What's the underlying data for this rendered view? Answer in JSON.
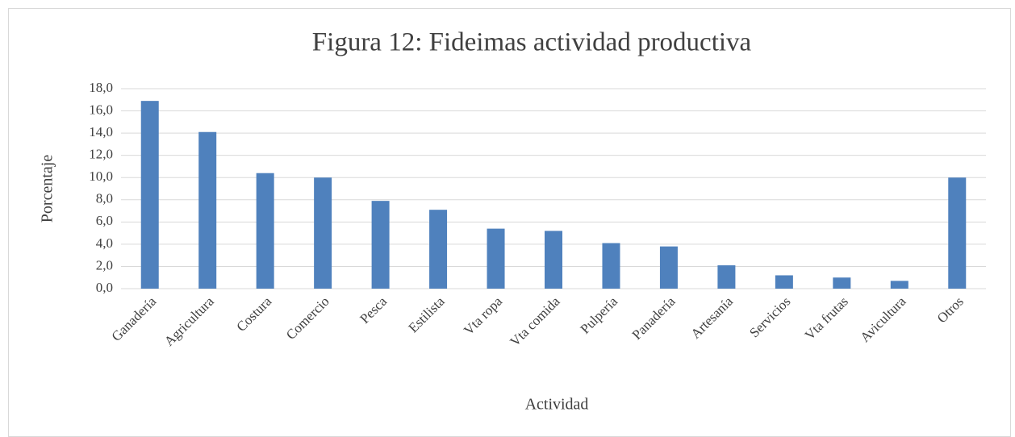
{
  "chart_data": {
    "type": "bar",
    "title": "Figura 12: Fideimas actividad productiva",
    "x_label": "Actividad",
    "y_label": "Porcentaje",
    "categories": [
      "Ganadería",
      "Agricultura",
      "Costura",
      "Comercio",
      "Pesca",
      "Estilista",
      "Vta ropa",
      "Vta comida",
      "Pulpería",
      "Panadería",
      "Artesanía",
      "Servicios",
      "Vta frutas",
      "Avicultura",
      "Otros"
    ],
    "values": [
      16.9,
      14.1,
      10.4,
      10.0,
      7.9,
      7.1,
      5.4,
      5.2,
      4.1,
      3.8,
      2.1,
      1.2,
      1.0,
      0.7,
      10.0
    ],
    "color": "#4f81bd",
    "ylim": [
      0,
      18
    ],
    "yticks": [
      {
        "value": 0,
        "label": "0,0"
      },
      {
        "value": 2,
        "label": "2,0"
      },
      {
        "value": 4,
        "label": "4,0"
      },
      {
        "value": 6,
        "label": "6,0"
      },
      {
        "value": 8,
        "label": "8,0"
      },
      {
        "value": 10,
        "label": "10,0"
      },
      {
        "value": 12,
        "label": "12,0"
      },
      {
        "value": 14,
        "label": "14,0"
      },
      {
        "value": 16,
        "label": "16,0"
      },
      {
        "value": 18,
        "label": "18,0"
      }
    ],
    "grid": true
  }
}
